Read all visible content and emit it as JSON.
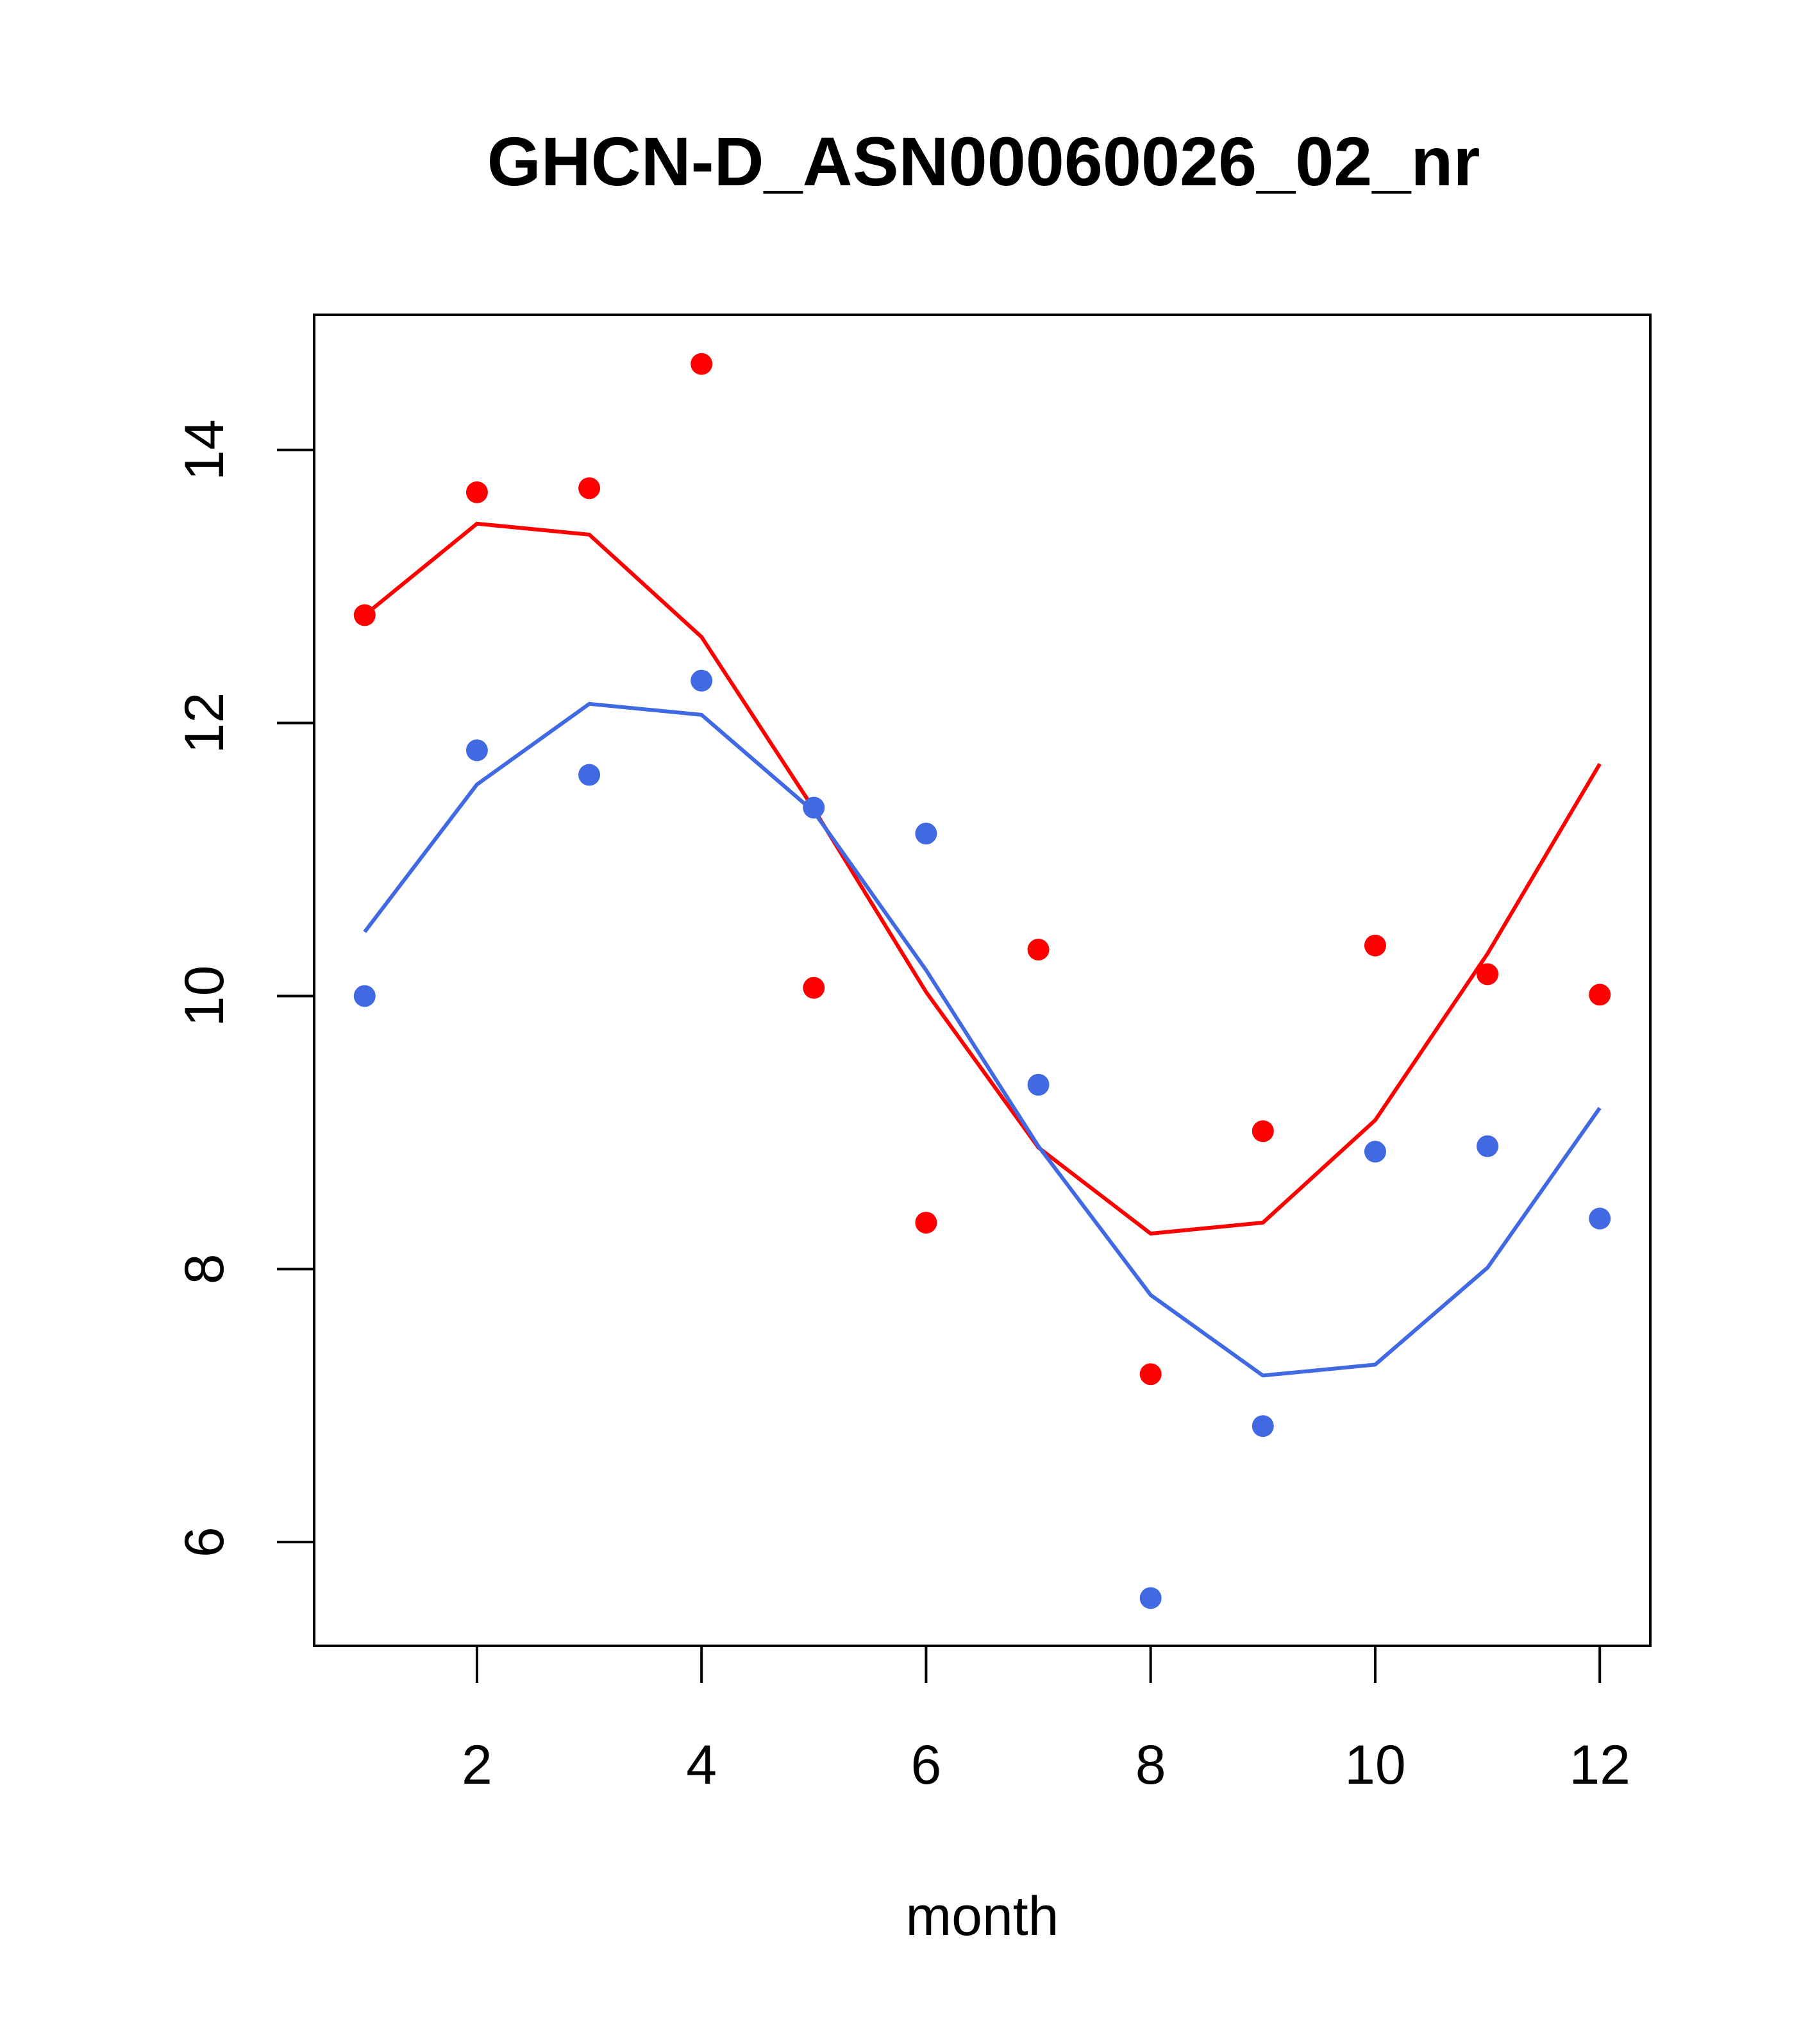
{
  "chart_data": {
    "type": "scatter",
    "title": "GHCN-D_ASN00060026_02_nr",
    "xlabel": "month",
    "ylabel": "",
    "xlim": [
      0.55,
      12.45
    ],
    "ylim": [
      5.24,
      14.99
    ],
    "x_ticks": [
      2,
      4,
      6,
      8,
      10,
      12
    ],
    "y_ticks": [
      6,
      8,
      10,
      12,
      14
    ],
    "grid": false,
    "legend": "none",
    "x": [
      1,
      2,
      3,
      4,
      5,
      6,
      7,
      8,
      9,
      10,
      11,
      12
    ],
    "series": [
      {
        "color": "#ff0000",
        "points": [
          12.79,
          13.69,
          13.72,
          14.63,
          10.06,
          8.34,
          10.34,
          7.23,
          9.01,
          10.37,
          10.16,
          10.01
        ],
        "fit": [
          12.79,
          13.46,
          13.38,
          12.63,
          11.37,
          10.03,
          8.89,
          8.26,
          8.34,
          9.09,
          10.31,
          11.7
        ]
      },
      {
        "color": "#4169e1",
        "points": [
          10.0,
          11.8,
          11.62,
          12.31,
          11.38,
          11.19,
          9.35,
          5.59,
          6.85,
          8.86,
          8.9,
          8.37
        ],
        "fit": [
          10.47,
          11.55,
          12.14,
          12.06,
          11.35,
          10.19,
          8.9,
          7.81,
          7.22,
          7.3,
          8.01,
          9.18
        ]
      }
    ]
  }
}
